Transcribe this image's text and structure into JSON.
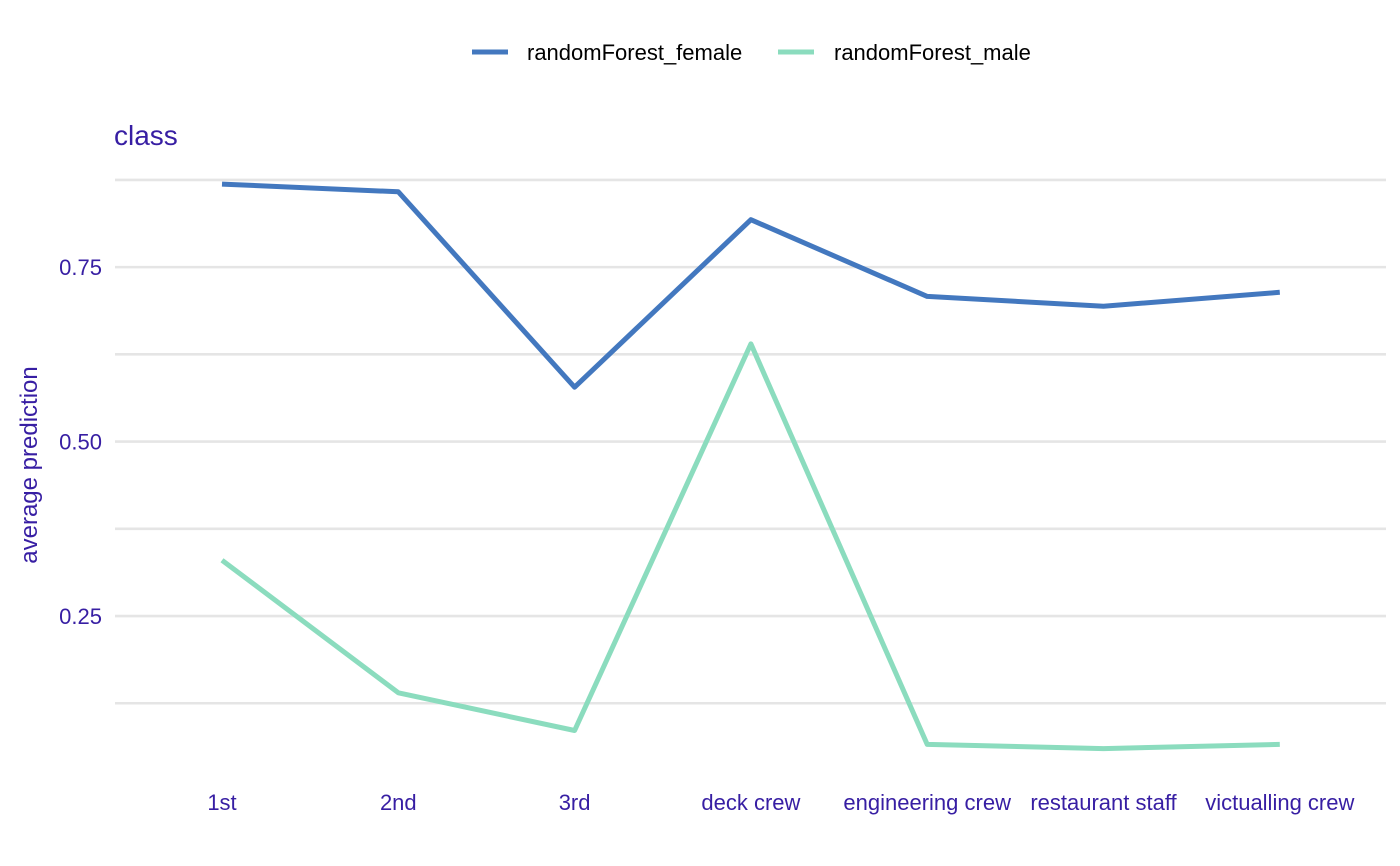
{
  "chart_data": {
    "type": "line",
    "title": "class",
    "xlabel": "",
    "ylabel": "average prediction",
    "categories": [
      "1st",
      "2nd",
      "3rd",
      "deck crew",
      "engineering crew",
      "restaurant staff",
      "victualling crew"
    ],
    "series": [
      {
        "name": "randomForest_female",
        "color": "#4378bf",
        "values": [
          0.869,
          0.858,
          0.578,
          0.818,
          0.708,
          0.694,
          0.714
        ]
      },
      {
        "name": "randomForest_male",
        "color": "#8bdcbe",
        "values": [
          0.33,
          0.14,
          0.086,
          0.64,
          0.066,
          0.06,
          0.066
        ]
      }
    ],
    "ylim": [
      0.015,
      0.915
    ],
    "yticks": [
      0.25,
      0.5,
      0.75
    ],
    "ytick_labels": [
      "0.25",
      "0.50",
      "0.75"
    ],
    "minor_grid": [
      0.125,
      0.375,
      0.625,
      0.875
    ],
    "grid": true,
    "legend_position": "top-center",
    "text_color": "#371ea3"
  }
}
